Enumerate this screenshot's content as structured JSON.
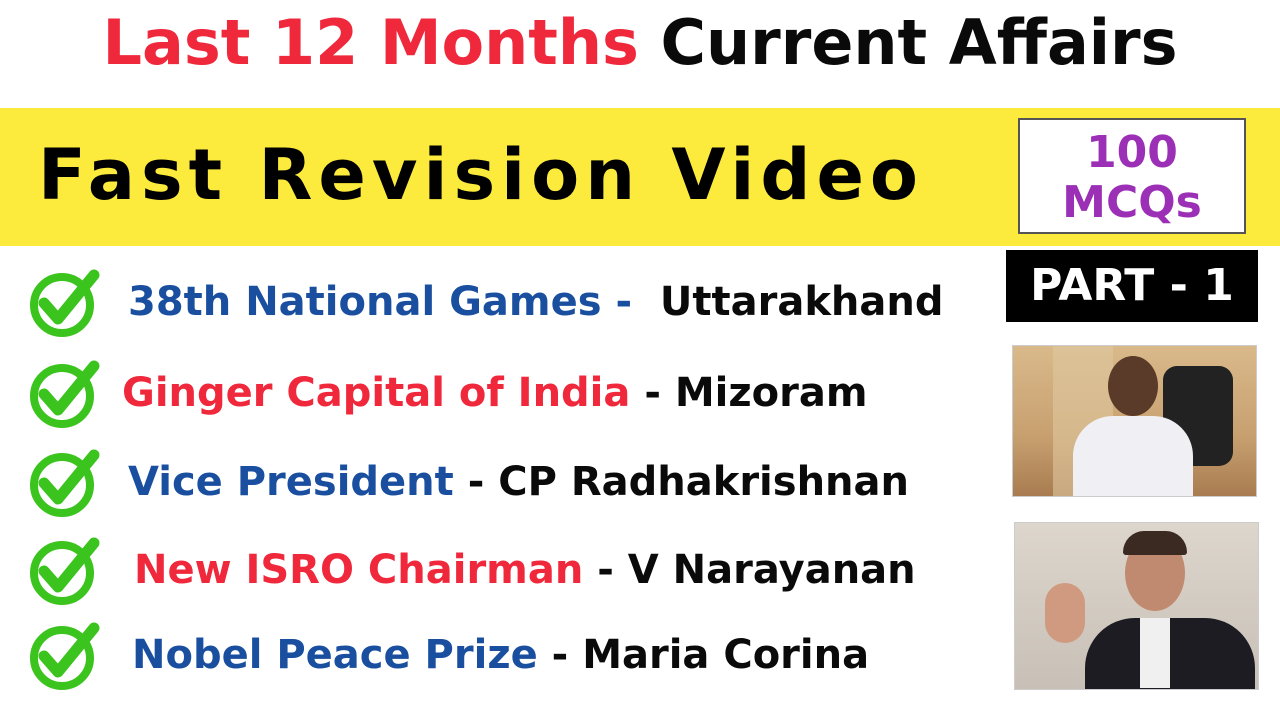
{
  "title": {
    "red_part": "Last 12 Months",
    "black_part": "Current Affairs"
  },
  "banner": {
    "text": "Fast Revision Video",
    "badge_line1": "100",
    "badge_line2": "MCQs"
  },
  "part_label": "PART - 1",
  "colors": {
    "red": "#f0283c",
    "blue": "#1a4fa0",
    "yellow": "#fceb3c",
    "purple": "#9b2fb5",
    "green": "#3cc41e"
  },
  "items": [
    {
      "topic": "38th National Games - ",
      "answer": " Uttarakhand",
      "topic_color": "blue"
    },
    {
      "topic": "Ginger Capital of India",
      "answer": " - Mizoram",
      "topic_color": "red"
    },
    {
      "topic": "Vice President",
      "answer": " - CP Radhakrishnan",
      "topic_color": "blue"
    },
    {
      "topic": "New ISRO Chairman",
      "answer": " - V Narayanan",
      "topic_color": "red"
    },
    {
      "topic": "Nobel Peace Prize",
      "answer": " - Maria Corina",
      "topic_color": "blue"
    }
  ],
  "icons": {
    "item_icon": "green-check-circle-icon"
  }
}
